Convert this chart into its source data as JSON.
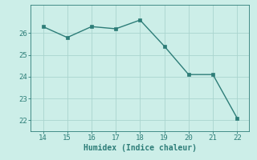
{
  "x": [
    14,
    15,
    16,
    17,
    18,
    19,
    20,
    21,
    22
  ],
  "y": [
    26.3,
    25.8,
    26.3,
    26.2,
    26.6,
    25.4,
    24.1,
    24.1,
    22.1
  ],
  "line_color": "#2d7d78",
  "marker_color": "#2d7d78",
  "bg_color": "#cceee8",
  "grid_color": "#aad4ce",
  "axis_color": "#2d7d78",
  "tick_color": "#2d7d78",
  "xlabel": "Humidex (Indice chaleur)",
  "ylim": [
    21.5,
    27.3
  ],
  "xlim": [
    13.5,
    22.5
  ],
  "yticks": [
    22,
    23,
    24,
    25,
    26
  ],
  "xticks": [
    14,
    15,
    16,
    17,
    18,
    19,
    20,
    21,
    22
  ],
  "xlabel_fontsize": 7,
  "tick_fontsize": 6.5,
  "line_width": 1.0,
  "marker_size": 2.5
}
